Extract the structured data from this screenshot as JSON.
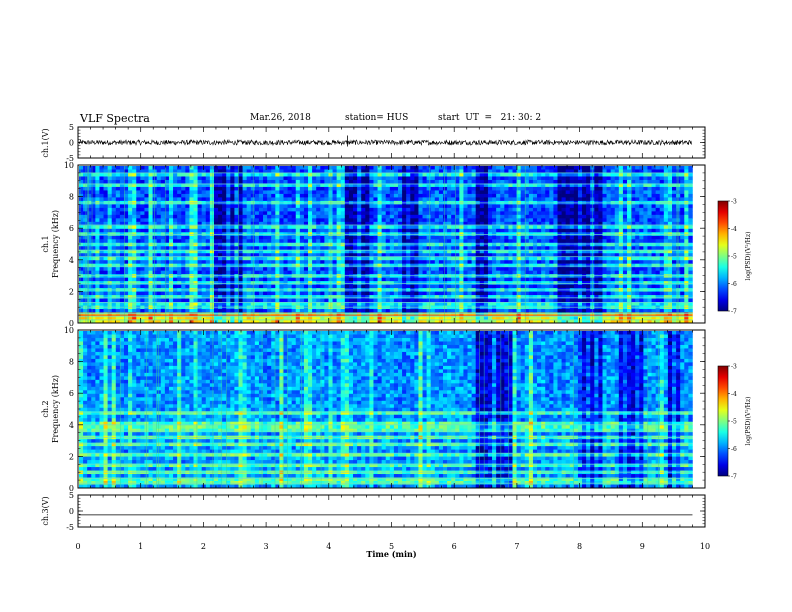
{
  "header": {
    "title": "VLF Spectra",
    "date": "Mar.26, 2018",
    "station": "station= HUS",
    "start": "start  UT  =   21: 30: 2"
  },
  "chart_data": [
    {
      "type": "line",
      "panel": "ch1-waveform",
      "ylabel": "ch.1(V)",
      "yticks": [
        "5",
        "0",
        "-5"
      ],
      "ylim": [
        -5,
        5
      ],
      "xlim": [
        0,
        10
      ],
      "signal": "noisy waveform near 0 V spanning 0 to 9.8 min",
      "x_end": 9.8
    },
    {
      "type": "heatmap",
      "panel": "ch1-spectrogram",
      "ylabel": "ch.1 Frequency (kHz)",
      "yticks": [
        "0",
        "2",
        "4",
        "6",
        "8",
        "10"
      ],
      "ylim": [
        0,
        10
      ],
      "xlim": [
        0,
        10
      ],
      "x_end": 9.8,
      "colorbar": {
        "label": "log(PSD)(V²/Hz)",
        "ticks": [
          "-3",
          "-4",
          "-5",
          "-6",
          "-7"
        ],
        "range": [
          -7,
          -3
        ]
      },
      "base_level": -6.2,
      "bands_khz": [
        0.2,
        0.4,
        0.6,
        1.0,
        1.3,
        1.6,
        2.1,
        2.5,
        3.0,
        3.6,
        4.2,
        4.6,
        5.0,
        5.6,
        6.2,
        7.6,
        8.8,
        9.5
      ],
      "dark_regions_min": [
        [
          2.1,
          2.6
        ],
        [
          4.2,
          4.7
        ],
        [
          5.1,
          5.4
        ],
        [
          6.3,
          6.5
        ],
        [
          7.6,
          8.3
        ]
      ]
    },
    {
      "type": "heatmap",
      "panel": "ch2-spectrogram",
      "ylabel": "ch.2 Frequency (kHz)",
      "yticks": [
        "0",
        "2",
        "4",
        "6",
        "8",
        "10"
      ],
      "ylim": [
        0,
        10
      ],
      "xlim": [
        0,
        10
      ],
      "x_end": 9.8,
      "colorbar": {
        "label": "log(PSD)(V²/Hz)",
        "ticks": [
          "-3",
          "-4",
          "-5",
          "-6",
          "-7"
        ],
        "range": [
          -7,
          -3
        ]
      },
      "base_level": -5.9,
      "bands_khz": [
        0.3,
        0.6,
        1.0,
        1.5,
        2.2,
        2.8,
        3.2,
        3.6,
        4.0,
        4.8
      ],
      "dark_regions_min": [
        [
          6.3,
          6.9
        ],
        [
          7.9,
          8.3
        ],
        [
          8.6,
          9.0
        ],
        [
          9.3,
          9.6
        ]
      ]
    },
    {
      "type": "line",
      "panel": "ch3-waveform",
      "ylabel": "ch.3(V)",
      "yticks": [
        "5",
        "0",
        "-5"
      ],
      "ylim": [
        -5,
        5
      ],
      "xlim": [
        0,
        10
      ],
      "signal": "flat line at about -1 V",
      "y_value": -1.2,
      "x_end": 9.8
    }
  ],
  "x_axis": {
    "label": "Time (min)",
    "ticks": [
      "0",
      "1",
      "2",
      "3",
      "4",
      "5",
      "6",
      "7",
      "8",
      "9",
      "10"
    ]
  }
}
